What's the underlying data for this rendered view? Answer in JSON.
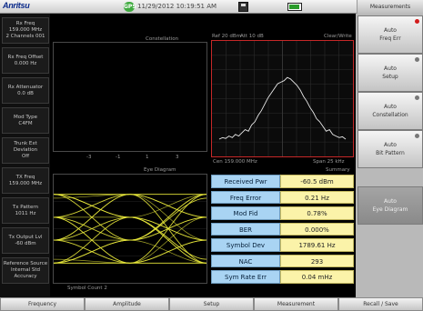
{
  "header": {
    "logo": "Anritsu",
    "gps": "GPS",
    "datetime": "11/29/2012 10:19:51 AM",
    "right_label": "Measurements"
  },
  "left_menu": [
    {
      "title": "Rx Freq",
      "value": "159.000 MHz",
      "extra": "2 Channels 001"
    },
    {
      "title": "Rx Freq Offset",
      "value": "0.000 Hz",
      "extra": ""
    },
    {
      "title": "Rx Attenuator",
      "value": "0.0 dB",
      "extra": ""
    },
    {
      "title": "Mod Type",
      "value": "C4FM",
      "extra": ""
    },
    {
      "title": "Trunk Ext Deviation",
      "value": "Off",
      "extra": ""
    },
    {
      "title": "TX Freq",
      "value": "159.000 MHz",
      "extra": ""
    },
    {
      "title": "Tx Pattern",
      "value": "1011 Hz",
      "extra": ""
    },
    {
      "title": "Tx Output Lvl",
      "value": "-60 dBm",
      "extra": ""
    },
    {
      "title": "Reference Source",
      "value": "Internal Std Accuracy",
      "extra": ""
    }
  ],
  "right_menu": [
    {
      "title": "Auto",
      "value": "Freq Err",
      "dot": "red",
      "style": "light"
    },
    {
      "title": "Auto",
      "value": "Setup",
      "dot": "gray",
      "style": "light"
    },
    {
      "title": "Auto",
      "value": "Constellation",
      "dot": "gray",
      "style": "light"
    },
    {
      "title": "Auto",
      "value": "Bit Pattern",
      "dot": "gray",
      "style": "light"
    },
    {
      "title": "Auto",
      "value": "Eye Diagram",
      "dot": "",
      "style": "dark"
    }
  ],
  "bottom_tabs": [
    "Frequency",
    "Amplitude",
    "Setup",
    "Measurement",
    "Recall / Save"
  ],
  "constellation": {
    "title": "Constellation",
    "ticks": [
      "-3",
      "-1",
      "1",
      "3"
    ]
  },
  "spectrum": {
    "ref": "Ref 20 dBm",
    "att": "Att 10 dB",
    "trace": "Clear/Write",
    "center": "Cen 159.000 MHz",
    "span": "Span 25 kHz"
  },
  "eye": {
    "title": "Eye Diagram",
    "footer": "Symbol Count 2",
    "right_title": "Summary"
  },
  "measurements": [
    {
      "label": "Received Pwr",
      "value": "-60.5 dBm"
    },
    {
      "label": "Freq Error",
      "value": "0.21 Hz"
    },
    {
      "label": "Mod Fid",
      "value": "0.78%"
    },
    {
      "label": "BER",
      "value": "0.000%"
    },
    {
      "label": "Symbol Dev",
      "value": "1789.61 Hz"
    },
    {
      "label": "NAC",
      "value": "293"
    },
    {
      "label": "Sym Rate Err",
      "value": "0.04 mHz"
    }
  ],
  "eye_traces": [
    {
      "a": 0.9,
      "b": -0.3,
      "c": 0.8
    },
    {
      "a": -0.9,
      "b": 0.3,
      "c": -0.8
    },
    {
      "a": 0.3,
      "b": 0.9,
      "c": 0.3
    },
    {
      "a": -0.3,
      "b": -0.9,
      "c": -0.3
    },
    {
      "a": 0.9,
      "b": 0.9,
      "c": 0.9
    },
    {
      "a": -0.9,
      "b": -0.9,
      "c": -0.9
    },
    {
      "a": 0.3,
      "b": -0.3,
      "c": 0.9
    },
    {
      "a": -0.3,
      "b": 0.3,
      "c": -0.9
    },
    {
      "a": 0.9,
      "b": 0.3,
      "c": -0.3
    },
    {
      "a": -0.9,
      "b": -0.3,
      "c": 0.3
    },
    {
      "a": 0.3,
      "b": -0.9,
      "c": 0.9
    },
    {
      "a": -0.3,
      "b": 0.9,
      "c": -0.9
    }
  ],
  "spectrum_trace": [
    0.08,
    0.1,
    0.09,
    0.12,
    0.1,
    0.14,
    0.12,
    0.16,
    0.2,
    0.18,
    0.26,
    0.3,
    0.38,
    0.44,
    0.52,
    0.6,
    0.66,
    0.72,
    0.78,
    0.8,
    0.82,
    0.86,
    0.84,
    0.8,
    0.76,
    0.7,
    0.62,
    0.56,
    0.48,
    0.42,
    0.34,
    0.3,
    0.24,
    0.18,
    0.2,
    0.14,
    0.12,
    0.1,
    0.11,
    0.08
  ],
  "colors": {
    "spectrum_border": "#c62828",
    "trace_yellow": "#e9e93b",
    "trace_white": "#e8e8e8",
    "label_blue": "#a9d4f3",
    "value_yellow": "#fbf3a9"
  }
}
